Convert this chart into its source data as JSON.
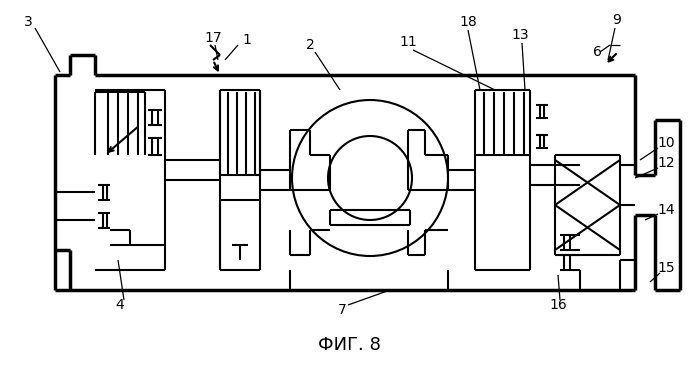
{
  "title": "ФИГ. 8",
  "title_fontsize": 13,
  "bg_color": "#ffffff",
  "line_color": "#000000",
  "lw": 1.5,
  "lw_thick": 2.5,
  "lw_thin": 0.9,
  "figsize": [
    6.98,
    3.67
  ],
  "dpi": 100
}
